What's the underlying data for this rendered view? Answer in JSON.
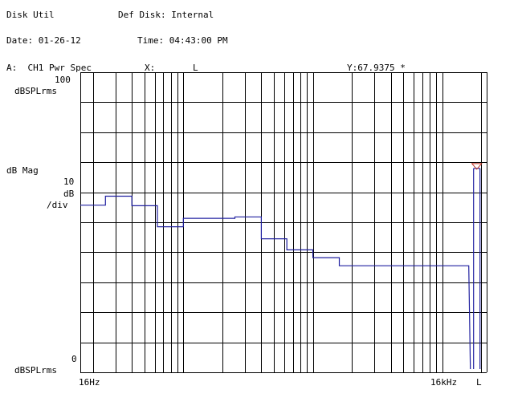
{
  "header": {
    "util_label": "Disk Util",
    "disk_label": "Def Disk: Internal",
    "date_label": "Date: 01-26-12",
    "time_label": "Time: 04:43:00 PM"
  },
  "trace_header": {
    "channel_label": "A:  CH1 Pwr Spec",
    "x_marker_label": "X:",
    "x_marker_value": "L",
    "y_marker_label": "Y:67.9375 *"
  },
  "y_axis": {
    "top_value": "100",
    "top_unit": "dBSPLrms",
    "mode_label": "dB Mag",
    "scale_value": "10",
    "scale_unit": "dB",
    "scale_per": "/div",
    "bottom_value": "0",
    "bottom_unit": "dBSPLrms"
  },
  "x_axis": {
    "start_label": "16Hz",
    "stop_label": "16kHz",
    "marker_label": "L"
  },
  "colors": {
    "trace": "#2020a0",
    "marker": "#c03020",
    "grid": "#000000"
  },
  "chart_data": {
    "type": "line",
    "title": "CH1 Pwr Spec",
    "ylabel": "dB Mag",
    "ylim": [
      0,
      100
    ],
    "xscale": "log",
    "xlim": [
      16,
      22000
    ],
    "x_start_label": "16Hz",
    "x_stop_label": "16kHz",
    "steps": [
      {
        "x_start": 16,
        "x_end": 25,
        "y": 55.7
      },
      {
        "x_start": 25,
        "x_end": 40,
        "y": 58.7
      },
      {
        "x_start": 40,
        "x_end": 63,
        "y": 55.5
      },
      {
        "x_start": 63,
        "x_end": 100,
        "y": 48.5
      },
      {
        "x_start": 100,
        "x_end": 160,
        "y": 51.3
      },
      {
        "x_start": 160,
        "x_end": 250,
        "y": 51.3
      },
      {
        "x_start": 250,
        "x_end": 400,
        "y": 51.8
      },
      {
        "x_start": 400,
        "x_end": 630,
        "y": 44.5
      },
      {
        "x_start": 630,
        "x_end": 1000,
        "y": 40.8
      },
      {
        "x_start": 1000,
        "x_end": 1600,
        "y": 38.2
      },
      {
        "x_start": 1600,
        "x_end": 2500,
        "y": 35.5
      },
      {
        "x_start": 2500,
        "x_end": 16000,
        "y": 35.5
      }
    ],
    "marker": {
      "label": "L",
      "y": 67.9375
    }
  }
}
